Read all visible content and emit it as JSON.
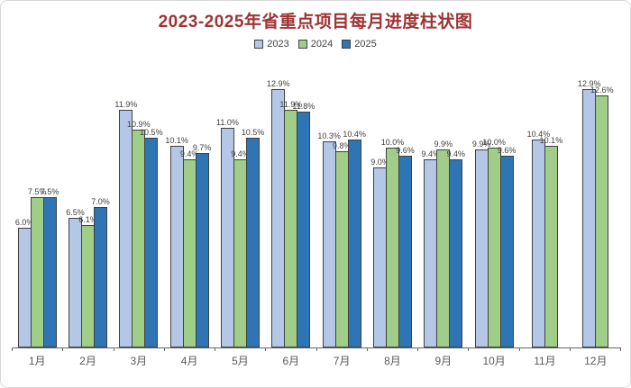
{
  "chart_data": {
    "type": "bar",
    "title": "2023-2025年省重点项目每月进度柱状图",
    "categories": [
      "1月",
      "2月",
      "3月",
      "4月",
      "5月",
      "6月",
      "7月",
      "8月",
      "9月",
      "10月",
      "11月",
      "12月"
    ],
    "series": [
      {
        "name": "2023",
        "color": "#b4c7e7",
        "values": [
          6.0,
          6.5,
          11.9,
          10.1,
          11.0,
          12.9,
          10.3,
          9.0,
          9.4,
          9.9,
          10.4,
          12.9
        ]
      },
      {
        "name": "2024",
        "color": "#a0cd88",
        "values": [
          7.5,
          6.1,
          10.9,
          9.4,
          9.4,
          11.9,
          9.8,
          10.0,
          9.9,
          10.0,
          10.1,
          12.6
        ]
      },
      {
        "name": "2025",
        "color": "#2e75b6",
        "values": [
          7.5,
          7.0,
          10.5,
          9.7,
          10.5,
          11.8,
          10.4,
          9.6,
          9.4,
          9.6,
          null,
          null
        ]
      }
    ],
    "value_suffix": "%",
    "ylim": [
      0,
      13.5
    ],
    "grid": false,
    "legend_position": "top",
    "xlabel": "",
    "ylabel": ""
  },
  "style": {
    "title_color": "#9e3434",
    "bar_outline_color": "#404040",
    "data_label_color": "#404040",
    "axis_color": "#666666",
    "tick_label_color": "#595959",
    "legend_text_color": "#404040"
  }
}
